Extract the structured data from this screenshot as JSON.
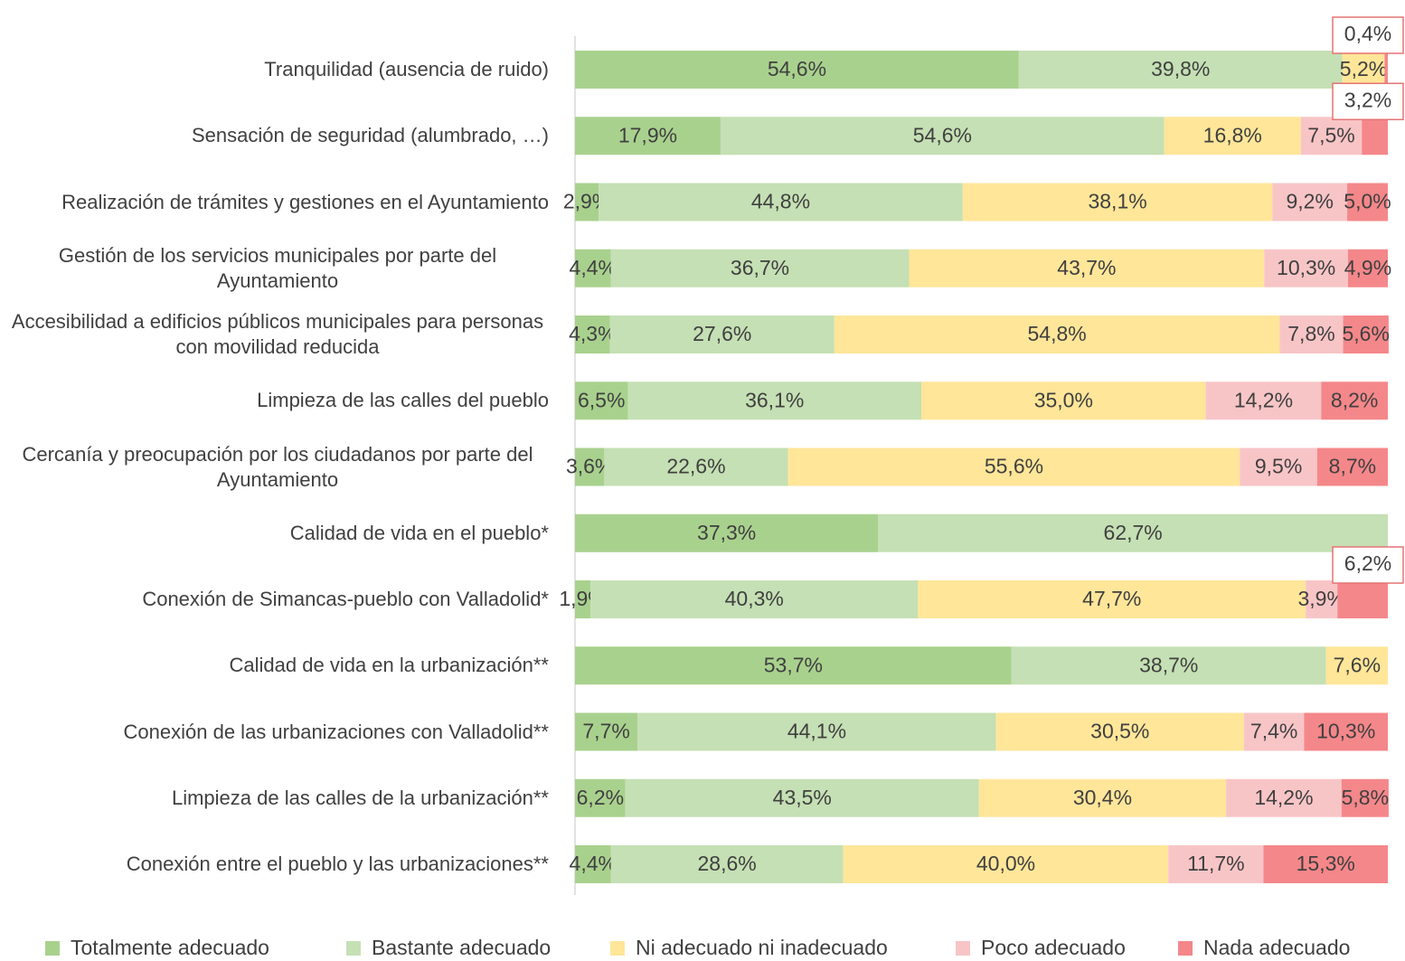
{
  "chart_data": {
    "type": "stacked_bar_horizontal_100",
    "categories": [
      "Tranquilidad (ausencia de ruido)",
      "Sensación de seguridad (alumbrado, …)",
      "Realización de trámites y gestiones en el Ayuntamiento",
      "Gestión de los servicios municipales por parte del Ayuntamiento",
      "Accesibilidad a edificios públicos municipales para personas con movilidad reducida",
      "Limpieza de las calles del pueblo",
      "Cercanía y preocupación por los ciudadanos por parte del Ayuntamiento",
      "Calidad de vida en el pueblo*",
      "Conexión de Simancas-pueblo con Valladolid*",
      "Calidad de vida en la urbanización**",
      "Conexión de las urbanizaciones con Valladolid**",
      "Limpieza de las calles de la urbanización**",
      "Conexión entre el pueblo y las urbanizaciones**"
    ],
    "series": [
      {
        "name": "Totalmente adecuado",
        "color": "#a9d18e",
        "values": [
          54.6,
          17.9,
          2.9,
          4.4,
          4.3,
          6.5,
          3.6,
          37.3,
          1.9,
          53.7,
          7.7,
          6.2,
          4.4
        ],
        "value_labels": [
          "54,6%",
          "17,9%",
          "2,9%",
          "4,4%",
          "4,3%",
          "6,5%",
          "3,6%",
          "37,3%",
          "1,9%",
          "53,7%",
          "7,7%",
          "6,2%",
          "4,4%"
        ]
      },
      {
        "name": "Bastante adecuado",
        "color": "#c5e0b4",
        "values": [
          39.8,
          54.6,
          44.8,
          36.7,
          27.6,
          36.1,
          22.6,
          62.7,
          40.3,
          38.7,
          44.1,
          43.5,
          28.6
        ],
        "value_labels": [
          "39,8%",
          "54,6%",
          "44,8%",
          "36,7%",
          "27,6%",
          "36,1%",
          "22,6%",
          "62,7%",
          "40,3%",
          "38,7%",
          "44,1%",
          "43,5%",
          "28,6%"
        ]
      },
      {
        "name": "Ni adecuado ni inadecuado",
        "color": "#ffe699",
        "values": [
          5.2,
          16.8,
          38.1,
          43.7,
          54.8,
          35.0,
          55.6,
          null,
          47.7,
          7.6,
          30.5,
          30.4,
          40.0
        ],
        "value_labels": [
          "5,2%",
          "16,8%",
          "38,1%",
          "43,7%",
          "54,8%",
          "35,0%",
          "55,6%",
          null,
          "47,7%",
          "7,6%",
          "30,5%",
          "30,4%",
          "40,0%"
        ]
      },
      {
        "name": "Poco adecuado",
        "color": "#f8c5c7",
        "values": [
          null,
          7.5,
          9.2,
          10.3,
          7.8,
          14.2,
          9.5,
          null,
          3.9,
          null,
          7.4,
          14.2,
          11.7
        ],
        "value_labels": [
          null,
          "7,5%",
          "9,2%",
          "10,3%",
          "7,8%",
          "14,2%",
          "9,5%",
          null,
          "3,9%",
          null,
          "7,4%",
          "14,2%",
          "11,7%"
        ]
      },
      {
        "name": "Nada adecuado",
        "color": "#f4878a",
        "values": [
          0.4,
          3.2,
          5.0,
          4.9,
          5.6,
          8.2,
          8.7,
          null,
          6.2,
          null,
          10.3,
          5.8,
          15.3
        ],
        "value_labels": [
          "0,4%",
          "3,2%",
          "5,0%",
          "4,9%",
          "5,6%",
          "8,2%",
          "8,7%",
          null,
          "6,2%",
          null,
          "10,3%",
          "5,8%",
          "15,3%"
        ]
      }
    ]
  }
}
